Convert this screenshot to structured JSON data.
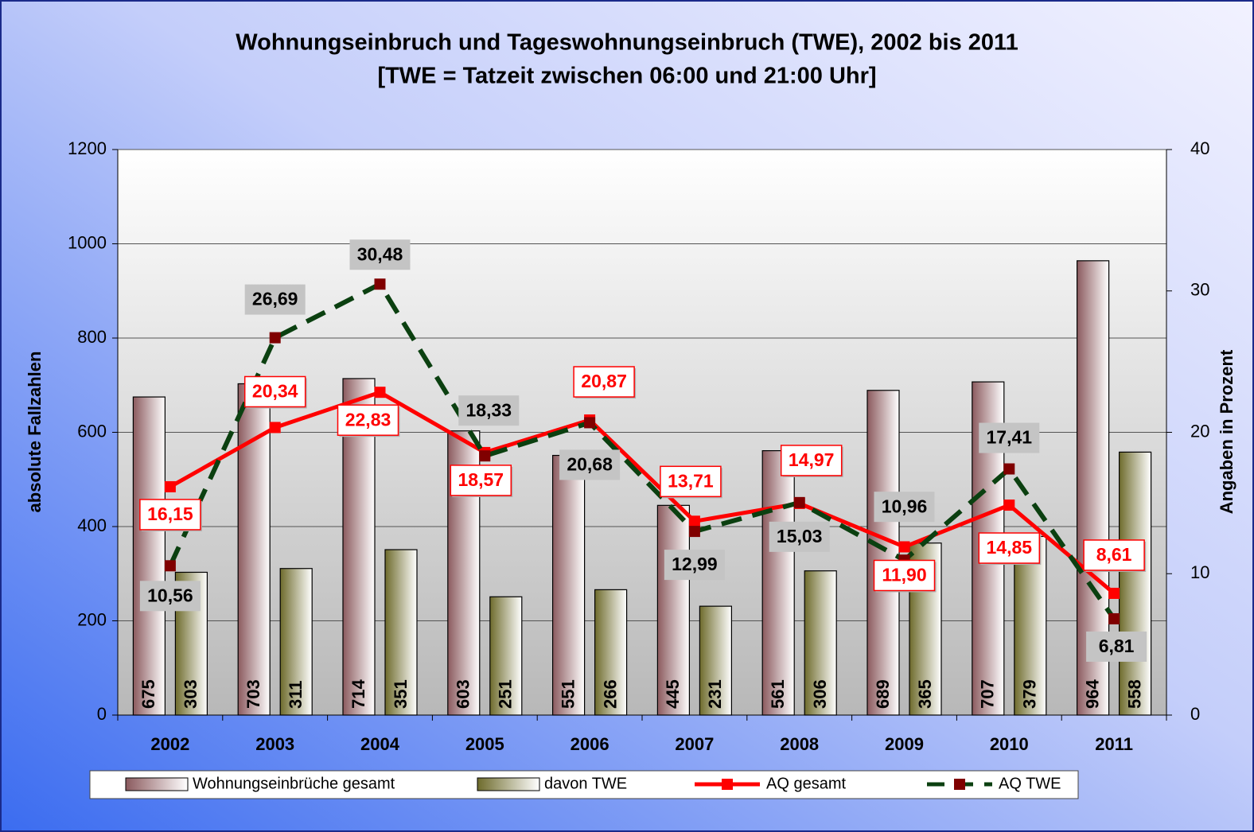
{
  "chart_data": {
    "type": "bar_line",
    "title": "Wohnungseinbruch und Tageswohnungseinbruch (TWE), 2002 bis 2011",
    "subtitle": "[TWE = Tatzeit zwischen 06:00 und 21:00 Uhr]",
    "y_label": "absolute Fallzahlen",
    "y2_label": "Angaben in Prozent",
    "categories": [
      "2002",
      "2003",
      "2004",
      "2005",
      "2006",
      "2007",
      "2008",
      "2009",
      "2010",
      "2011"
    ],
    "series": [
      {
        "name": "Wohnungseinbrüche gesamt",
        "type": "bar",
        "color": "#8b5a5e",
        "values": [
          675,
          703,
          714,
          603,
          551,
          445,
          561,
          689,
          707,
          964
        ]
      },
      {
        "name": "davon TWE",
        "type": "bar",
        "color": "#6e6b2c",
        "values": [
          303,
          311,
          351,
          251,
          266,
          231,
          306,
          365,
          379,
          558
        ]
      },
      {
        "name": "AQ gesamt",
        "type": "line",
        "axis": "y2",
        "color": "#ff0000",
        "values": [
          16.15,
          20.34,
          22.83,
          18.57,
          20.87,
          13.71,
          14.97,
          11.9,
          14.85,
          8.61
        ],
        "value_labels": [
          "16,15",
          "20,34",
          "22,83",
          "18,57",
          "20,87",
          "13,71",
          "14,97",
          "11,90",
          "14,85",
          "8,61"
        ]
      },
      {
        "name": "AQ TWE",
        "type": "line",
        "axis": "y2",
        "color": "#0b4010",
        "marker_color": "#800000",
        "dashed": true,
        "values": [
          10.56,
          26.69,
          30.48,
          18.33,
          20.68,
          12.99,
          15.03,
          10.96,
          17.41,
          6.81
        ],
        "value_labels": [
          "10,56",
          "26,69",
          "30,48",
          "18,33",
          "20,68",
          "12,99",
          "15,03",
          "10,96",
          "17,41",
          "6,81"
        ]
      }
    ],
    "ylim": [
      0,
      1200
    ],
    "yticks": [
      0,
      200,
      400,
      600,
      800,
      1000,
      1200
    ],
    "y2lim": [
      0,
      40
    ],
    "y2ticks": [
      0,
      10,
      20,
      30,
      40
    ],
    "grid": true,
    "legend": "bottom"
  }
}
